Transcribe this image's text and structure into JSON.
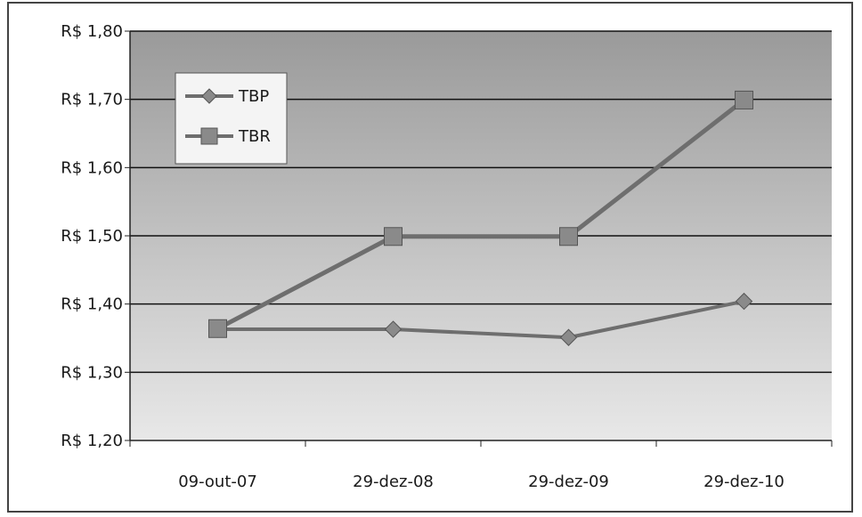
{
  "chart_data": {
    "type": "line",
    "title": "",
    "xlabel": "",
    "ylabel": "",
    "categories": [
      "09-out-07",
      "29-dez-08",
      "29-dez-09",
      "29-dez-10"
    ],
    "ylim": [
      1.2,
      1.8
    ],
    "yticks": [
      1.2,
      1.3,
      1.4,
      1.5,
      1.6,
      1.7,
      1.8
    ],
    "ytick_labels": [
      "R$ 1,20",
      "R$ 1,30",
      "R$ 1,40",
      "R$ 1,50",
      "R$ 1,60",
      "R$ 1,70",
      "R$ 1,80"
    ],
    "grid": true,
    "legend_position": "top-left",
    "series": [
      {
        "name": "TBP",
        "marker": "diamond",
        "values": [
          1.363,
          1.363,
          1.351,
          1.404
        ]
      },
      {
        "name": "TBR",
        "marker": "square",
        "values": [
          1.364,
          1.499,
          1.499,
          1.699
        ]
      }
    ],
    "colors": {
      "line": "#6e6e6e",
      "marker": "#8a8a8a",
      "grid": "#111111",
      "plot_bg_top": "#9a9a9a",
      "plot_bg_bottom": "#e8e8e8"
    }
  }
}
